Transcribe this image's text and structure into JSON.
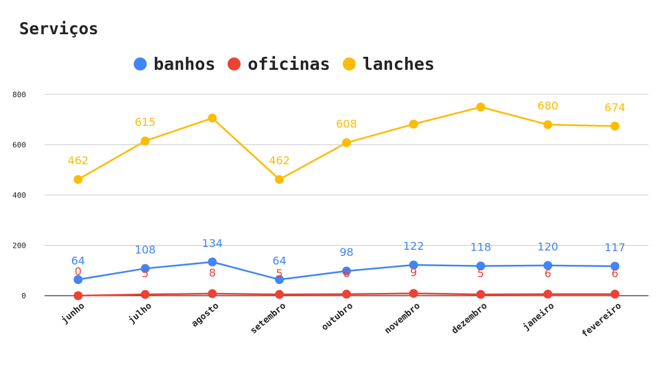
{
  "chart_data": {
    "type": "line",
    "title": "Serviços",
    "categories": [
      "junho",
      "julho",
      "agosto",
      "setembro",
      "outubro",
      "novembro",
      "dezembro",
      "janeiro",
      "fevereiro"
    ],
    "ylim": [
      0,
      800
    ],
    "yticks": [
      0,
      200,
      400,
      600,
      800
    ],
    "grid": true,
    "legend_position": "top",
    "series": [
      {
        "name": "banhos",
        "color": "#4285f4",
        "values": [
          64,
          108,
          134,
          64,
          98,
          122,
          118,
          120,
          117
        ],
        "labels": [
          "64",
          "108",
          "134",
          "64",
          "98",
          "122",
          "118",
          "120",
          "117"
        ]
      },
      {
        "name": "oficinas",
        "color": "#ea4335",
        "values": [
          0,
          5,
          8,
          5,
          6,
          9,
          5,
          6,
          6
        ],
        "labels": [
          "0",
          "5",
          "8",
          "5",
          "6",
          "9",
          "5",
          "6",
          "6"
        ]
      },
      {
        "name": "lanches",
        "color": "#fbbc04",
        "values": [
          462,
          615,
          706,
          462,
          608,
          682,
          750,
          680,
          674
        ],
        "labels": [
          "462",
          "615",
          "",
          "462",
          "608",
          "",
          "",
          "680",
          "674"
        ]
      }
    ]
  }
}
